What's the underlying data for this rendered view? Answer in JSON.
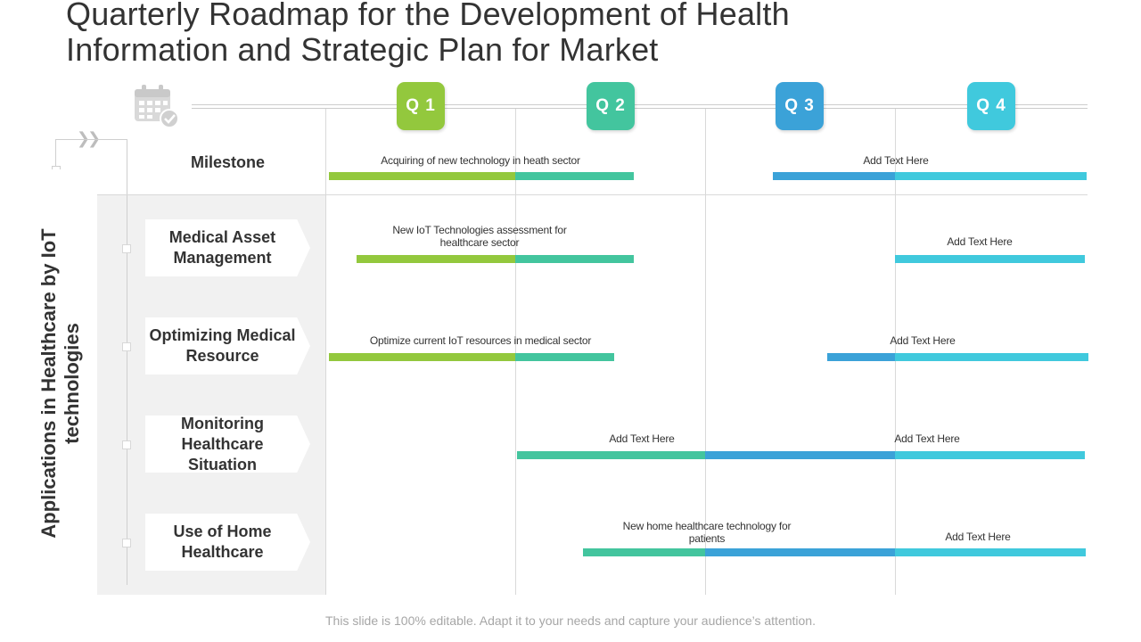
{
  "title": {
    "line1": "Quarterly Roadmap for the Development of Health",
    "line2": "Information and Strategic Plan for Market"
  },
  "side_title": {
    "line1": "Applications in Healthcare by IoT",
    "line2": "technologies"
  },
  "quarters": [
    "Q 1",
    "Q 2",
    "Q 3",
    "Q 4"
  ],
  "colors": {
    "q1": "#93c83d",
    "q2": "#43c59e",
    "q3": "#3ba2d8",
    "q4": "#40c9dd",
    "panel": "#f1f1f1",
    "footer_text": "#a6a6a6"
  },
  "rows": {
    "milestone": "Milestone",
    "r1": {
      "line1": "Medical Asset",
      "line2": "Management"
    },
    "r2": {
      "line1": "Optimizing Medical",
      "line2": "Resource"
    },
    "r3": {
      "line1": "Monitoring",
      "line2": "Healthcare",
      "line3": "Situation"
    },
    "r4": {
      "line1": "Use of Home",
      "line2": "Healthcare"
    }
  },
  "bar_labels": {
    "milestone_a": "Acquiring of new technology in heath sector",
    "milestone_b": "Add Text Here",
    "r1_a_line1": "New IoT Technologies assessment for",
    "r1_a_line2": "healthcare sector",
    "r1_b": "Add Text Here",
    "r2_a": "Optimize current IoT resources in medical sector",
    "r2_b": "Add Text Here",
    "r3_a": "Add Text Here",
    "r3_b": "Add Text Here",
    "r4_a_line1": "New home healthcare technology for",
    "r4_a_line2": "patients",
    "r4_b": "Add Text Here"
  },
  "footer": "This slide is 100% editable. Adapt it to your needs and capture your audience’s attention.",
  "icons": {
    "calendar": "calendar-check-icon",
    "chevrons": "double-chevron-right-icon"
  }
}
